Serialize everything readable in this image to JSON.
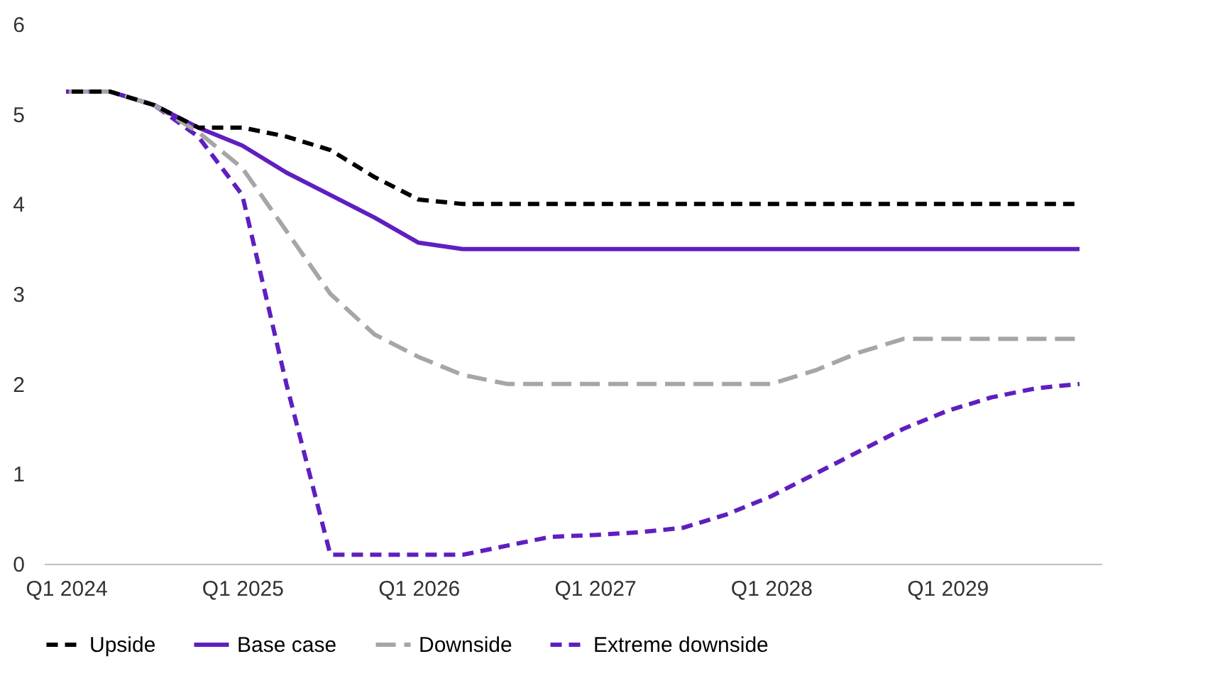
{
  "chart_data": {
    "type": "line",
    "categories": [
      "Q1 2024",
      null,
      null,
      null,
      "Q1 2025",
      null,
      null,
      null,
      "Q1 2026",
      null,
      null,
      null,
      "Q1 2027",
      null,
      null,
      null,
      "Q1 2028",
      null,
      null,
      null,
      "Q1 2029",
      null,
      null,
      null
    ],
    "ylim": [
      0,
      6
    ],
    "yticks": [
      0,
      1,
      2,
      3,
      4,
      5,
      6
    ],
    "grid": false,
    "legend": "bottom",
    "marker": "none",
    "series": [
      {
        "name": "Upside",
        "color": "#000000",
        "line_style": "dashed",
        "values": [
          5.25,
          5.25,
          5.1,
          4.85,
          4.85,
          4.75,
          4.6,
          4.3,
          4.05,
          4.0,
          4.0,
          4.0,
          4.0,
          4.0,
          4.0,
          4.0,
          4.0,
          4.0,
          4.0,
          4.0,
          4.0,
          4.0,
          4.0,
          4.0
        ]
      },
      {
        "name": "Base case",
        "color": "#5f1fbf",
        "line_style": "solid",
        "values": [
          5.25,
          5.25,
          5.1,
          4.85,
          4.65,
          4.35,
          4.1,
          3.85,
          3.57,
          3.5,
          3.5,
          3.5,
          3.5,
          3.5,
          3.5,
          3.5,
          3.5,
          3.5,
          3.5,
          3.5,
          3.5,
          3.5,
          3.5,
          3.5
        ]
      },
      {
        "name": "Downside",
        "color": "#a6a6a6",
        "line_style": "longdashed",
        "values": [
          5.25,
          5.25,
          5.1,
          4.8,
          4.4,
          3.7,
          3.0,
          2.55,
          2.3,
          2.1,
          2.0,
          2.0,
          2.0,
          2.0,
          2.0,
          2.0,
          2.0,
          2.15,
          2.35,
          2.5,
          2.5,
          2.5,
          2.5,
          2.5
        ]
      },
      {
        "name": "Extreme downside",
        "color": "#5f1fbf",
        "line_style": "dashed",
        "values": [
          5.25,
          5.25,
          5.1,
          4.75,
          4.1,
          2.0,
          0.1,
          0.1,
          0.1,
          0.1,
          0.2,
          0.3,
          0.32,
          0.35,
          0.4,
          0.55,
          0.75,
          1.0,
          1.25,
          1.5,
          1.7,
          1.85,
          1.95,
          2.0
        ]
      }
    ]
  }
}
